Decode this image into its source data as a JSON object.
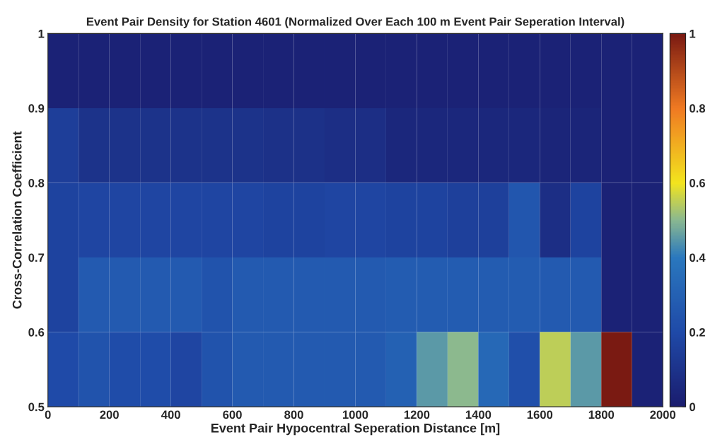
{
  "chart_data": {
    "type": "heatmap",
    "title": "Event Pair Density for Station 4601 (Normalized Over Each 100 m Event Pair Seperation Interval)",
    "xlabel": "Event Pair Hypocentral Seperation Distance [m]",
    "ylabel": "Cross-Correlation Coefficient",
    "cells": [
      [
        0.03,
        0.03,
        0.03,
        0.03,
        0.03,
        0.03,
        0.03,
        0.03,
        0.03,
        0.03,
        0.03,
        0.03,
        0.03,
        0.03,
        0.03,
        0.03,
        0.03,
        0.03,
        0.03,
        0.03
      ],
      [
        0.15,
        0.1,
        0.1,
        0.1,
        0.1,
        0.1,
        0.1,
        0.09,
        0.09,
        0.08,
        0.08,
        0.05,
        0.05,
        0.05,
        0.05,
        0.05,
        0.04,
        0.04,
        0.03,
        0.03
      ],
      [
        0.17,
        0.18,
        0.18,
        0.18,
        0.18,
        0.18,
        0.18,
        0.17,
        0.17,
        0.18,
        0.18,
        0.17,
        0.17,
        0.16,
        0.16,
        0.25,
        0.08,
        0.17,
        0.03,
        0.03
      ],
      [
        0.17,
        0.27,
        0.27,
        0.27,
        0.27,
        0.24,
        0.27,
        0.27,
        0.27,
        0.27,
        0.27,
        0.28,
        0.28,
        0.28,
        0.28,
        0.28,
        0.27,
        0.27,
        0.03,
        0.03
      ],
      [
        0.2,
        0.24,
        0.21,
        0.21,
        0.18,
        0.24,
        0.27,
        0.27,
        0.27,
        0.27,
        0.27,
        0.3,
        0.45,
        0.5,
        0.33,
        0.22,
        0.55,
        0.45,
        1.0,
        0.03
      ]
    ],
    "xlim": [
      0,
      2000
    ],
    "xticks": [
      0,
      200,
      400,
      600,
      800,
      1000,
      1200,
      1400,
      1600,
      1800,
      2000
    ],
    "ylim": [
      0.5,
      1
    ],
    "yticks": [
      0.5,
      0.6,
      0.7,
      0.8,
      0.9,
      1
    ],
    "clim": [
      0,
      1
    ],
    "cticks": [
      0,
      0.2,
      0.4,
      0.6,
      0.8,
      1
    ]
  }
}
